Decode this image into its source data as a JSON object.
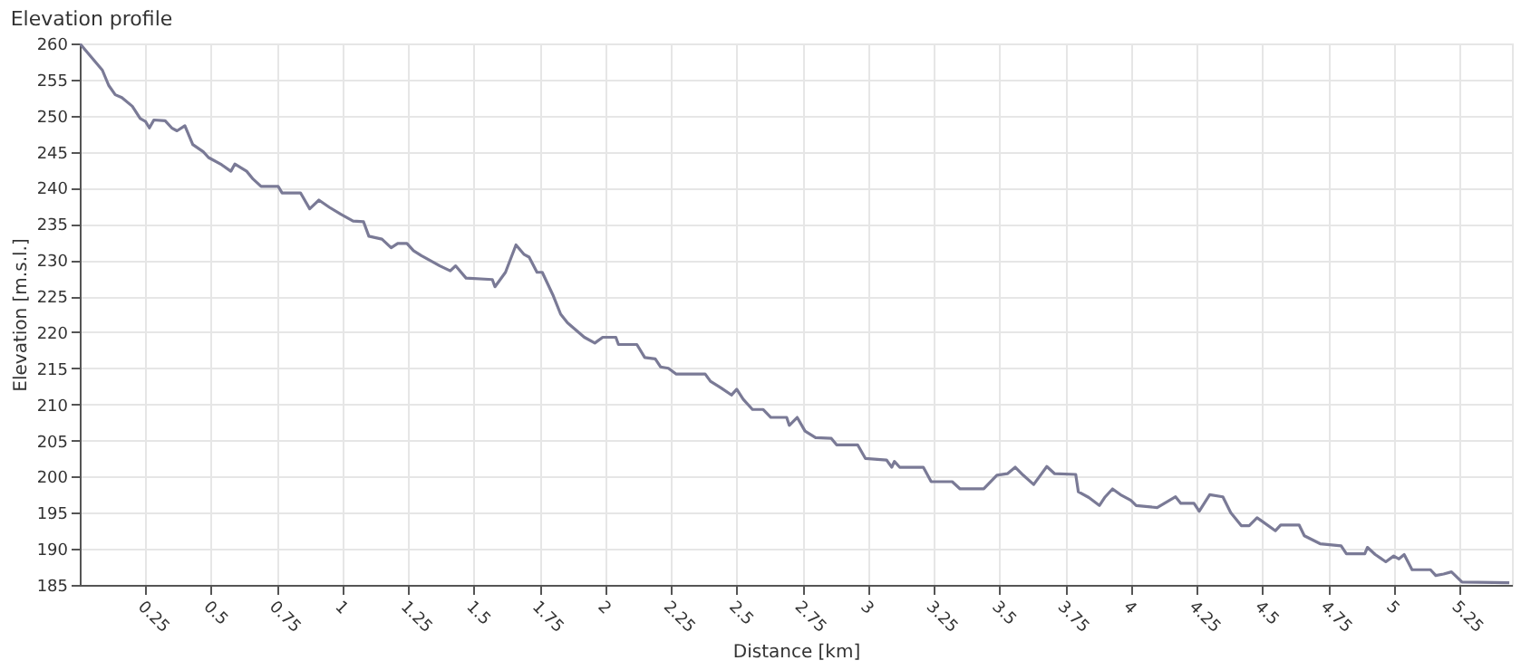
{
  "chart_data": {
    "type": "line",
    "title": "Elevation profile",
    "xlabel": "Distance [km]",
    "ylabel": "Elevation [m.s.l.]",
    "x": [
      0,
      0.086,
      0.11,
      0.135,
      0.16,
      0.2,
      0.23,
      0.25,
      0.265,
      0.282,
      0.325,
      0.35,
      0.37,
      0.4,
      0.43,
      0.47,
      0.49,
      0.54,
      0.575,
      0.59,
      0.635,
      0.66,
      0.69,
      0.755,
      0.77,
      0.84,
      0.875,
      0.91,
      0.95,
      0.995,
      1.04,
      1.08,
      1.1,
      1.15,
      1.185,
      1.21,
      1.245,
      1.27,
      1.3,
      1.35,
      1.37,
      1.41,
      1.43,
      1.47,
      1.57,
      1.58,
      1.62,
      1.66,
      1.69,
      1.71,
      1.74,
      1.76,
      1.8,
      1.83,
      1.856,
      1.92,
      1.96,
      1.99,
      2.04,
      2.05,
      2.12,
      2.15,
      2.19,
      2.21,
      2.24,
      2.27,
      2.38,
      2.4,
      2.44,
      2.48,
      2.5,
      2.525,
      2.56,
      2.6,
      2.63,
      2.69,
      2.7,
      2.73,
      2.76,
      2.8,
      2.86,
      2.88,
      2.96,
      2.99,
      3.07,
      3.09,
      3.1,
      3.12,
      3.21,
      3.24,
      3.32,
      3.35,
      3.44,
      3.49,
      3.53,
      3.56,
      3.59,
      3.63,
      3.68,
      3.71,
      3.79,
      3.8,
      3.84,
      3.88,
      3.9,
      3.93,
      3.96,
      4.0,
      4.02,
      4.1,
      4.17,
      4.19,
      4.24,
      4.26,
      4.3,
      4.35,
      4.38,
      4.42,
      4.45,
      4.48,
      4.5,
      4.55,
      4.57,
      4.64,
      4.66,
      4.72,
      4.8,
      4.82,
      4.89,
      4.9,
      4.93,
      4.97,
      5.0,
      5.02,
      5.04,
      5.07,
      5.14,
      5.16,
      5.19,
      5.22,
      5.26,
      5.44
    ],
    "series": [
      {
        "color": "#7a7a96",
        "values": [
          260,
          256.3,
          254.2,
          252.9,
          252.5,
          251.3,
          249.6,
          249.2,
          248.3,
          249.4,
          249.3,
          248.3,
          247.9,
          248.6,
          246,
          245,
          244.2,
          243.2,
          242.3,
          243.3,
          242.3,
          241.2,
          240.2,
          240.2,
          239.3,
          239.3,
          237.1,
          238.3,
          237.3,
          236.3,
          235.4,
          235.3,
          233.3,
          232.9,
          231.7,
          232.3,
          232.3,
          231.3,
          230.6,
          229.6,
          229.2,
          228.5,
          229.2,
          227.5,
          227.3,
          226.3,
          228.3,
          232.1,
          230.8,
          230.4,
          228.3,
          228.3,
          225.2,
          222.5,
          221.3,
          219.3,
          218.5,
          219.3,
          219.3,
          218.3,
          218.3,
          216.5,
          216.3,
          215.2,
          215,
          214.2,
          214.2,
          213.2,
          212.3,
          211.3,
          212.1,
          210.7,
          209.3,
          209.3,
          208.2,
          208.2,
          207.1,
          208.2,
          206.3,
          205.4,
          205.3,
          204.4,
          204.4,
          202.5,
          202.3,
          201.3,
          202.1,
          201.3,
          201.3,
          199.3,
          199.3,
          198.3,
          198.3,
          200.2,
          200.4,
          201.3,
          200.2,
          198.9,
          201.4,
          200.4,
          200.3,
          197.9,
          197.1,
          196,
          197.1,
          198.3,
          197.5,
          196.7,
          196,
          195.7,
          197.2,
          196.3,
          196.3,
          195.2,
          197.5,
          197.2,
          195,
          193.2,
          193.2,
          194.3,
          193.8,
          192.5,
          193.3,
          193.3,
          191.8,
          190.7,
          190.4,
          189.3,
          189.3,
          190.2,
          189.2,
          188.2,
          189,
          188.6,
          189.2,
          187.1,
          187.1,
          186.3,
          186.5,
          186.8,
          185.4,
          185.3
        ]
      }
    ],
    "xlim": [
      0,
      5.45
    ],
    "xticks": [
      0.25,
      0.5,
      0.75,
      1,
      1.25,
      1.5,
      1.75,
      2,
      2.25,
      2.5,
      2.75,
      3,
      3.25,
      3.5,
      3.75,
      4,
      4.25,
      4.5,
      4.75,
      5,
      5.25
    ],
    "ylim": [
      185,
      260
    ],
    "yticks": [
      185,
      190,
      195,
      200,
      205,
      210,
      215,
      220,
      225,
      230,
      235,
      240,
      245,
      250,
      255,
      260
    ],
    "grid": true,
    "marker": "none",
    "line_style": "solid"
  }
}
